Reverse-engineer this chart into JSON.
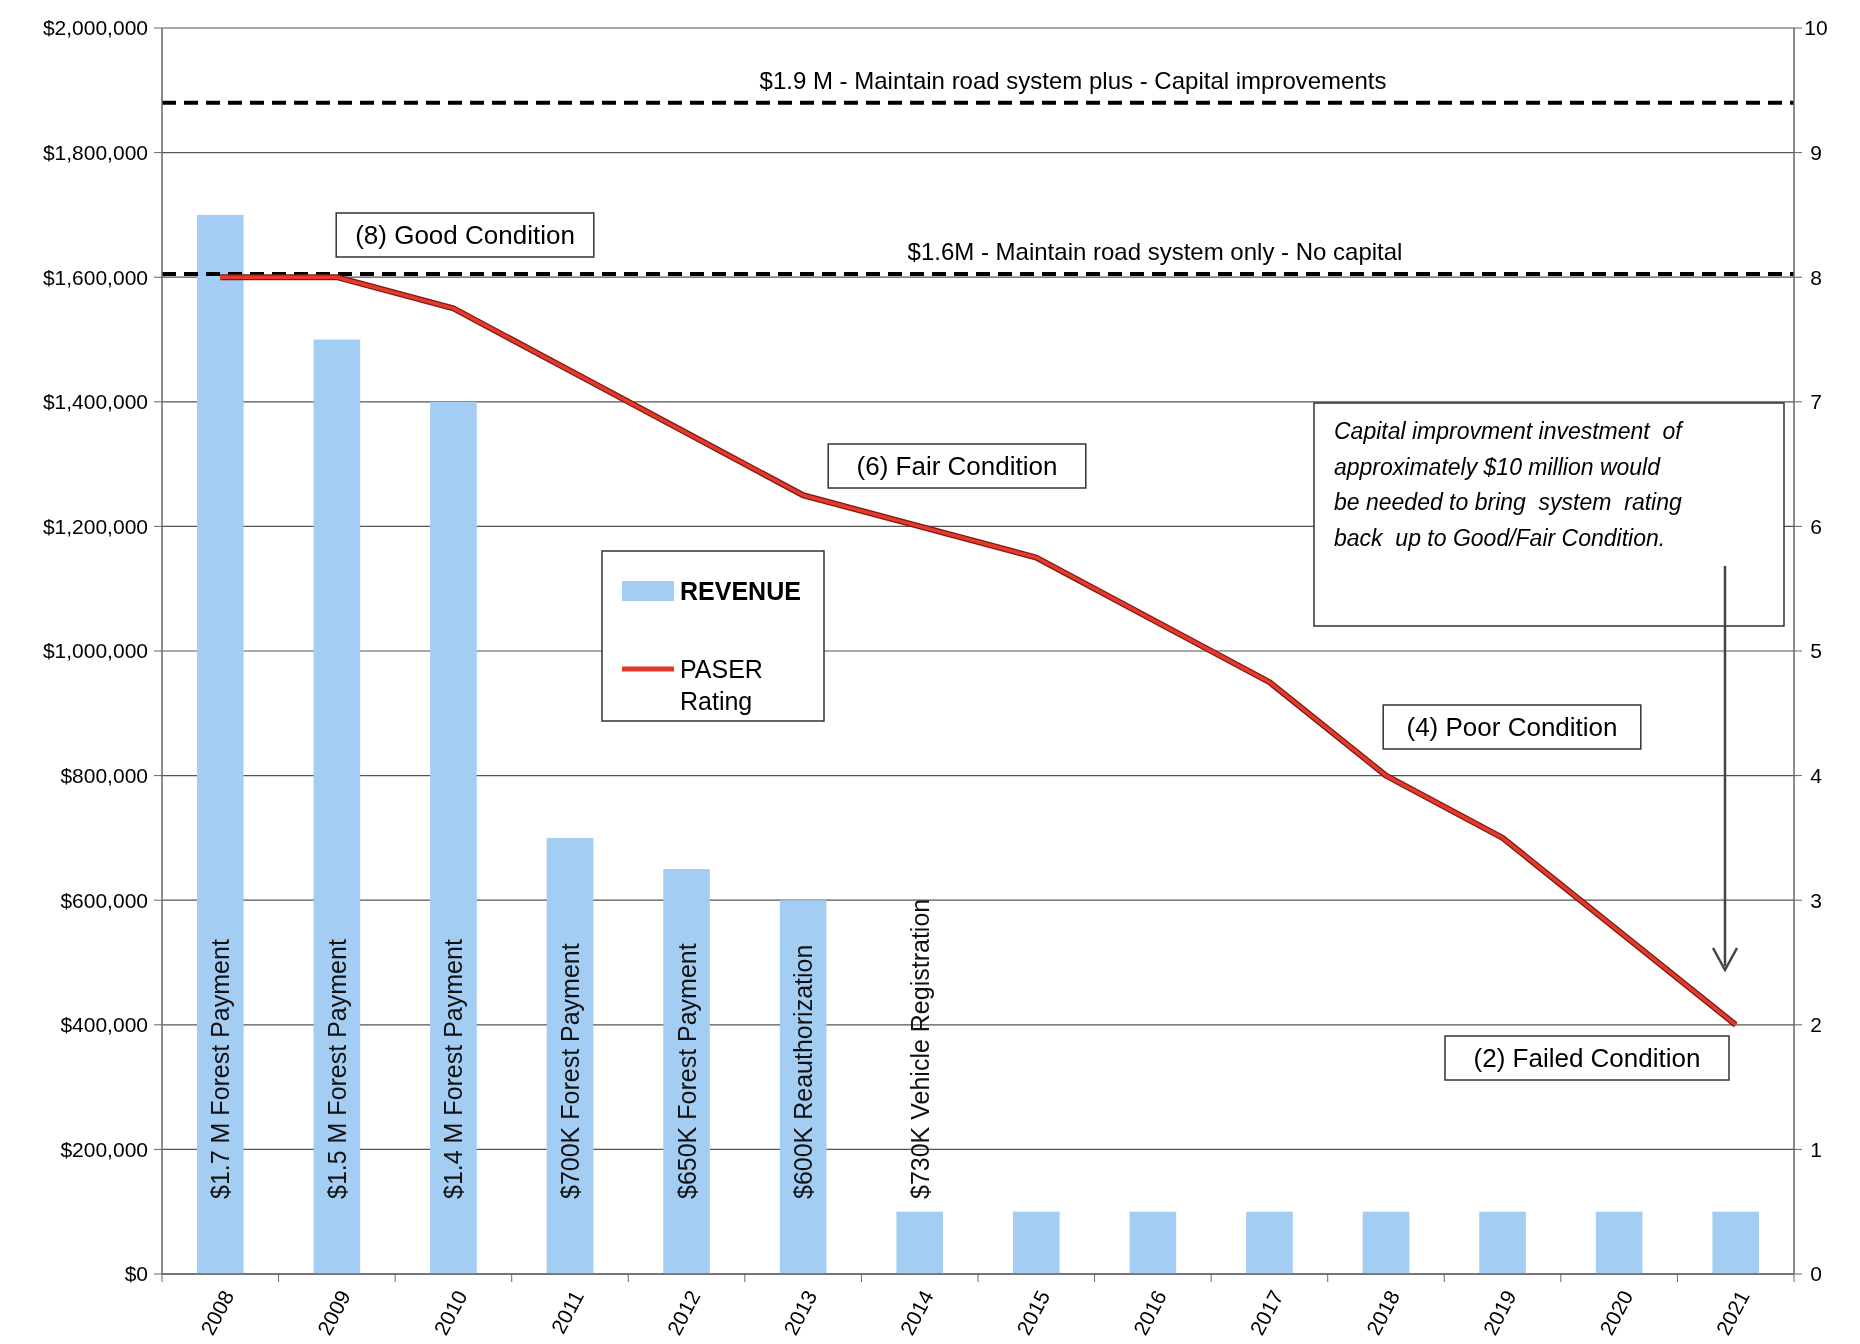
{
  "chart_data": {
    "type": "bar",
    "categories": [
      "2008",
      "2009",
      "2010",
      "2011",
      "2012",
      "2013",
      "2014",
      "2015",
      "2016",
      "2017",
      "2018",
      "2019",
      "2020",
      "2021"
    ],
    "series": [
      {
        "name": "REVENUE",
        "color": "#a3cdf2",
        "values": [
          1700000,
          1500000,
          1400000,
          700000,
          650000,
          600000,
          100000,
          100000,
          100000,
          100000,
          100000,
          100000,
          100000,
          100000
        ]
      },
      {
        "name": "PASER Rating",
        "type": "line",
        "axis": "y2",
        "color": "#e5392c",
        "values": [
          8,
          8,
          7.75,
          7.25,
          6.75,
          6.25,
          6,
          5.75,
          5.25,
          4.75,
          4,
          3.5,
          2.75,
          2
        ]
      }
    ],
    "ylim": [
      0,
      2000000
    ],
    "yticks": [
      {
        "value": 0,
        "label": "$0"
      },
      {
        "value": 200000,
        "label": "$200,000"
      },
      {
        "value": 400000,
        "label": "$400,000"
      },
      {
        "value": 600000,
        "label": "$600,000"
      },
      {
        "value": 800000,
        "label": "$800,000"
      },
      {
        "value": 1000000,
        "label": "$1,000,000"
      },
      {
        "value": 1200000,
        "label": "$1,200,000"
      },
      {
        "value": 1400000,
        "label": "$1,400,000"
      },
      {
        "value": 1600000,
        "label": "$1,600,000"
      },
      {
        "value": 1800000,
        "label": "$1,800,000"
      },
      {
        "value": 2000000,
        "label": "$2,000,000"
      }
    ],
    "y2lim": [
      0,
      10
    ],
    "y2ticks": [
      0,
      1,
      2,
      3,
      4,
      5,
      6,
      7,
      8,
      9,
      10
    ],
    "grid": "y",
    "legend": "center",
    "line_style": "solid",
    "marker": "none",
    "ref_lines": [
      {
        "axis": "y",
        "value": 1880000,
        "label": "$1.9 M - Maintain road system plus - Capital improvements",
        "color": "#000000",
        "line_style": "dashed"
      },
      {
        "axis": "y",
        "value": 1605000,
        "label": "$1.6M - Maintain road system only - No capital",
        "color": "#000000",
        "line_style": "dashed"
      }
    ],
    "annotations": [
      "$1.7 M Forest Payment",
      "$1.5 M Forest Payment",
      "$1.4 M Forest Payment",
      "$700K Forest Payment",
      "$650K Forest Payment",
      "$600K Reauthorization",
      "$730K Vehicle Registration",
      "(8) Good Condition",
      "(6) Fair Condition",
      "(4) Poor Condition",
      "(2) Failed Condition",
      "Capital improvment investment  of\napproximately $10 million would\nbe needed to bring  system  rating\nback  up to Good/Fair Condition."
    ]
  }
}
